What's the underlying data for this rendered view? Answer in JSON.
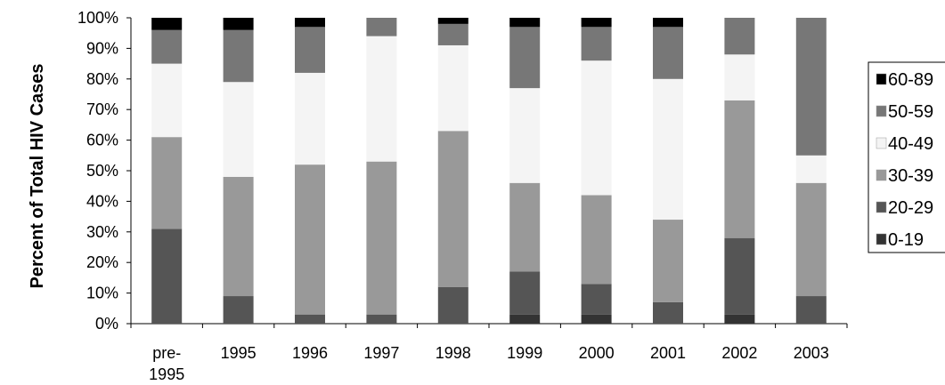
{
  "chart_data": {
    "type": "bar",
    "stacked": true,
    "percent_stacked": true,
    "title": "",
    "xlabel": "",
    "ylabel": "Percent of Total HIV Cases",
    "ylim": [
      0,
      100
    ],
    "yticks": [
      "0%",
      "10%",
      "20%",
      "30%",
      "40%",
      "50%",
      "60%",
      "70%",
      "80%",
      "90%",
      "100%"
    ],
    "grid": false,
    "legend_position": "right",
    "categories": [
      [
        "pre-",
        "1995"
      ],
      "1995",
      "1996",
      "1997",
      "1998",
      "1999",
      "2000",
      "2001",
      "2002",
      "2003"
    ],
    "series": [
      {
        "name": "0-19",
        "color": "#333333",
        "values": [
          0,
          0,
          0,
          0,
          0,
          3,
          3,
          0,
          3,
          0
        ]
      },
      {
        "name": "20-29",
        "color": "#555555",
        "values": [
          31,
          9,
          3,
          3,
          12,
          14,
          10,
          7,
          25,
          9
        ]
      },
      {
        "name": "30-39",
        "color": "#999999",
        "values": [
          30,
          39,
          49,
          50,
          51,
          29,
          29,
          27,
          45,
          37
        ]
      },
      {
        "name": "40-49",
        "color": "#f4f4f4",
        "values": [
          24,
          31,
          30,
          41,
          28,
          31,
          44,
          46,
          15,
          9
        ]
      },
      {
        "name": "50-59",
        "color": "#777777",
        "values": [
          11,
          17,
          15,
          6,
          7,
          20,
          11,
          17,
          12,
          45
        ]
      },
      {
        "name": "60-89",
        "color": "#000000",
        "values": [
          4,
          4,
          3,
          0,
          2,
          3,
          3,
          3,
          0,
          0
        ]
      }
    ]
  }
}
